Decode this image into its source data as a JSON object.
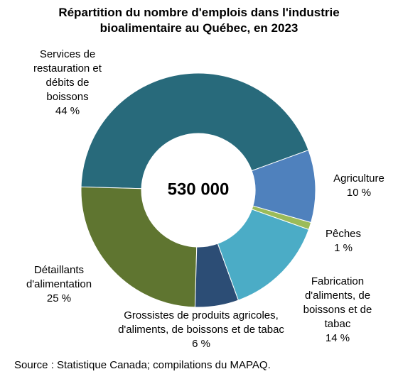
{
  "chart_data": {
    "type": "pie",
    "title": "Répartition du nombre d'emplois dans l'industrie bioalimentaire au Québec, en 2023",
    "center_label": "530 000",
    "categories": [
      "Agriculture",
      "Pêches",
      "Fabrication d'aliments, de boissons et de tabac",
      "Grossistes de produits agricoles, d'aliments, de boissons et de tabac",
      "Détaillants d'alimentation",
      "Services de restauration et débits de boissons"
    ],
    "values": [
      10,
      1,
      14,
      6,
      25,
      44
    ],
    "value_labels": [
      "10 %",
      "1 %",
      "14 %",
      "6 %",
      "25 %",
      "44 %"
    ],
    "colors": [
      "#4f81bd",
      "#9bbb59",
      "#4bacc6",
      "#2c4d75",
      "#5f7530",
      "#286a7b"
    ],
    "source": "Source : Statistique Canada; compilations du MAPAQ."
  }
}
